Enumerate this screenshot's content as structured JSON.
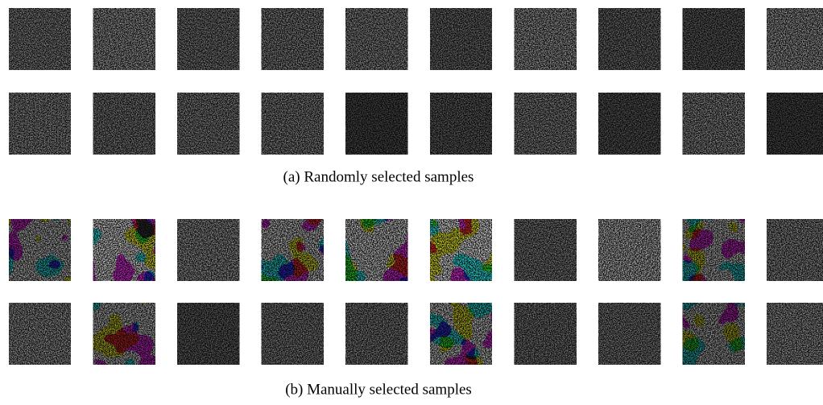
{
  "figure": {
    "captions": [
      "(a)  Randomly selected samples",
      "(b)  Manually selected samples"
    ]
  }
}
